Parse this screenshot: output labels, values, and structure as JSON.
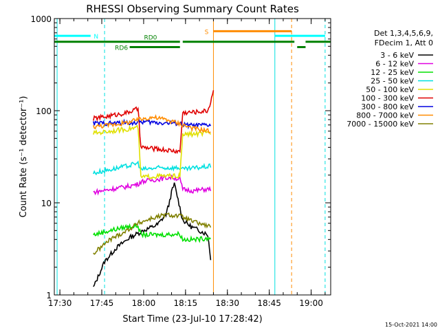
{
  "chart_data": {
    "type": "line",
    "title": "RHESSI Observing Summary Count Rates",
    "xlabel": "Start Time (23-Jul-10 17:28:42)",
    "ylabel": "Count Rate (s⁻¹ detector⁻¹)",
    "xlim": [
      "17:28",
      "19:07"
    ],
    "ylim": [
      1,
      1000
    ],
    "yscale": "log",
    "x_ticks": [
      "17:30",
      "17:45",
      "18:00",
      "18:15",
      "18:30",
      "18:45",
      "19:00"
    ],
    "y_ticks": [
      "1",
      "10",
      "100",
      "1000"
    ],
    "legend_header": [
      "Det 1,3,4,5,6,9,",
      "FDecim 1, Att 0"
    ],
    "legend_position": "right",
    "footer_date": "15-Oct-2021 14:00",
    "series": [
      {
        "name": "3 - 6 keV",
        "color": "#000000",
        "x": [
          "17:42",
          "17:46",
          "17:50",
          "17:55",
          "18:00",
          "18:05",
          "18:08",
          "18:09",
          "18:10",
          "18:11",
          "18:12",
          "18:14",
          "18:17",
          "18:20",
          "18:23",
          "18:24"
        ],
        "y": [
          1.2,
          2.3,
          3.2,
          4.2,
          5.0,
          5.8,
          7.5,
          9.5,
          13,
          16,
          12,
          6.5,
          5.5,
          5.0,
          4.5,
          2.5
        ]
      },
      {
        "name": "6 - 12 keV",
        "color": "#e000e0",
        "x": [
          "17:42",
          "17:48",
          "17:54",
          "17:58",
          "17:59",
          "18:05",
          "18:10",
          "18:13",
          "18:14",
          "18:18",
          "18:22",
          "18:24"
        ],
        "y": [
          13,
          14,
          15,
          16,
          17,
          18,
          19,
          18,
          14,
          13.5,
          14,
          14
        ]
      },
      {
        "name": "12 - 25 keV",
        "color": "#00e000",
        "x": [
          "17:42",
          "17:48",
          "17:54",
          "17:58",
          "17:59",
          "18:06",
          "18:13",
          "18:14",
          "18:19",
          "18:24"
        ],
        "y": [
          4.5,
          5.0,
          5.5,
          5.6,
          4.5,
          4.5,
          4.6,
          4.0,
          4.0,
          4.2
        ]
      },
      {
        "name": "25 - 50 keV",
        "color": "#00e0e0",
        "x": [
          "17:42",
          "17:48",
          "17:54",
          "17:58",
          "17:59",
          "18:06",
          "18:13",
          "18:14",
          "18:19",
          "18:24"
        ],
        "y": [
          21,
          23,
          25,
          27,
          23,
          24,
          24,
          23,
          24,
          25
        ]
      },
      {
        "name": "50 - 100 keV",
        "color": "#e0e000",
        "x": [
          "17:42",
          "17:48",
          "17:54",
          "17:58",
          "17:59",
          "18:06",
          "18:13",
          "18:14",
          "18:19",
          "18:24"
        ],
        "y": [
          57,
          60,
          63,
          66,
          19,
          19.5,
          19.5,
          55,
          56,
          57
        ]
      },
      {
        "name": "100 - 300 keV",
        "color": "#e00000",
        "x": [
          "17:42",
          "17:48",
          "17:54",
          "17:58",
          "17:59",
          "18:06",
          "18:13",
          "18:14",
          "18:19",
          "18:23",
          "18:24",
          "18:25"
        ],
        "y": [
          82,
          88,
          95,
          105,
          40,
          38,
          36,
          95,
          97,
          100,
          125,
          170
        ]
      },
      {
        "name": "300 - 800 keV",
        "color": "#0000e0",
        "x": [
          "17:42",
          "17:48",
          "17:54",
          "17:58",
          "17:59",
          "18:06",
          "18:13",
          "18:14",
          "18:19",
          "18:24"
        ],
        "y": [
          73,
          73,
          74,
          74,
          76,
          74,
          73,
          70,
          69,
          70
        ]
      },
      {
        "name": "800 - 7000 keV",
        "color": "#ff8c00",
        "x": [
          "17:42",
          "17:48",
          "17:54",
          "17:58",
          "18:03",
          "18:08",
          "18:13",
          "18:18",
          "18:24"
        ],
        "y": [
          67,
          70,
          74,
          80,
          85,
          80,
          72,
          64,
          60
        ]
      },
      {
        "name": "7000 - 15000 keV",
        "color": "#808000",
        "x": [
          "17:42",
          "17:48",
          "17:54",
          "17:58",
          "18:03",
          "18:08",
          "18:13",
          "18:18",
          "18:24"
        ],
        "y": [
          2.8,
          4.0,
          5.0,
          6.0,
          6.8,
          7.4,
          7.2,
          6.2,
          5.5
        ]
      }
    ],
    "annotations": [
      {
        "label": "N",
        "color": "#00ffff",
        "segments": [
          [
            "17:28",
            "17:41"
          ],
          [
            "18:47",
            "19:05"
          ]
        ],
        "y": 650
      },
      {
        "label": "S",
        "color": "#ff8c00",
        "segments": [
          [
            "18:25",
            "18:53"
          ]
        ],
        "y": 730
      },
      {
        "label": "RD0",
        "color": "#008000",
        "segments": [
          [
            "17:28",
            "18:13"
          ],
          [
            "18:14",
            "18:54"
          ],
          [
            "18:58",
            "19:07"
          ]
        ],
        "y": 560
      },
      {
        "label": "RD6",
        "color": "#008000",
        "segments": [
          [
            "17:55",
            "18:13"
          ]
        ],
        "y": 490
      },
      {
        "label": "",
        "color": "#008000",
        "segments": [
          [
            "18:55",
            "18:58"
          ]
        ],
        "y": 490
      }
    ],
    "vertical_markers": [
      {
        "x": "17:29",
        "color": "#00e0e0",
        "style": "solid"
      },
      {
        "x": "17:46",
        "color": "#00e0e0",
        "style": "dashed"
      },
      {
        "x": "18:25",
        "color": "#ff8c00",
        "style": "solid"
      },
      {
        "x": "18:47",
        "color": "#00e0e0",
        "style": "solid"
      },
      {
        "x": "18:53",
        "color": "#ff8c00",
        "style": "dashed"
      },
      {
        "x": "19:05",
        "color": "#00e0e0",
        "style": "dashed"
      }
    ]
  }
}
